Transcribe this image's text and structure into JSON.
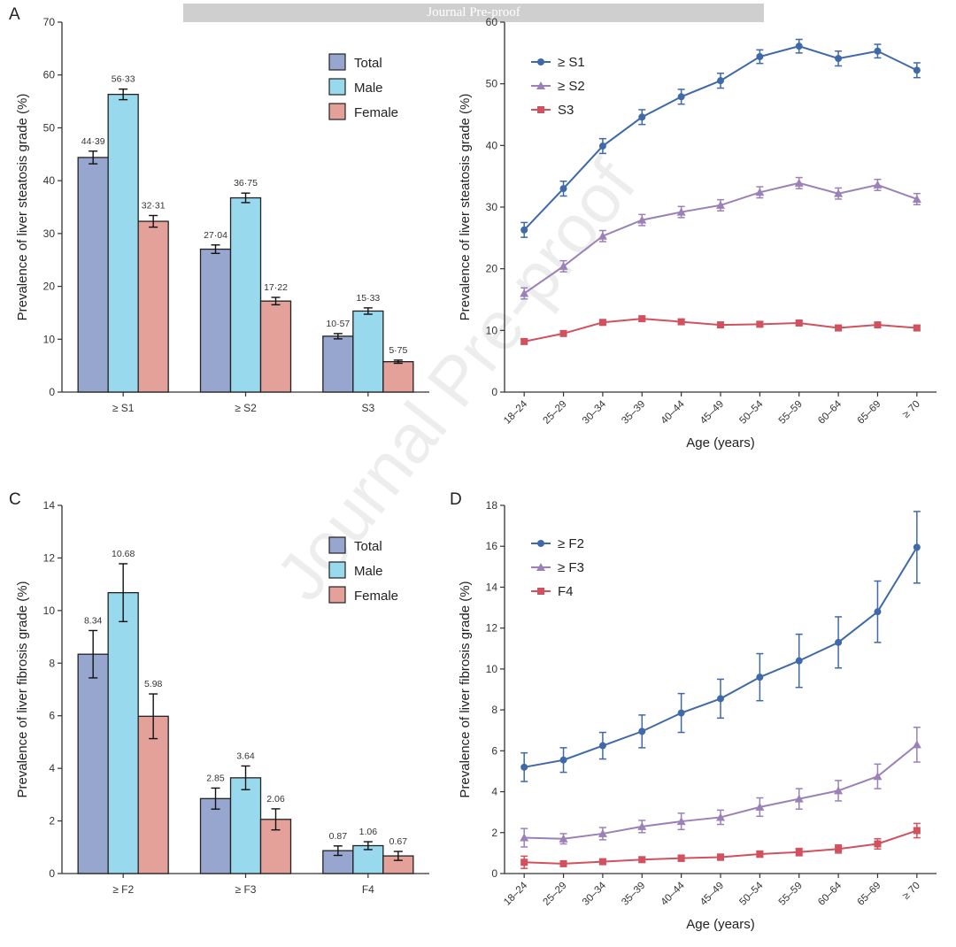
{
  "watermark": "Journal Pre-proof",
  "banner": "Journal Pre-proof",
  "colors": {
    "total": "#97a6cf",
    "male": "#98d9ee",
    "female": "#e4a19a",
    "s1": "#3f69a8",
    "s2": "#9b81b7",
    "s3": "#d1525e"
  },
  "chart_data": [
    {
      "panel": "A",
      "type": "bar",
      "ylabel": "Prevalence of liver steatosis grade (%)",
      "categories": [
        "≥ S1",
        "≥ S2",
        "S3"
      ],
      "ylim": [
        0,
        70
      ],
      "yticks": [
        0,
        10,
        20,
        30,
        40,
        50,
        60,
        70
      ],
      "legend_position": "top-right",
      "series": [
        {
          "name": "Total",
          "values": [
            44.39,
            27.04,
            10.57
          ],
          "labels": [
            "44·39",
            "27·04",
            "10·57"
          ],
          "err": [
            1.2,
            0.8,
            0.5
          ]
        },
        {
          "name": "Male",
          "values": [
            56.33,
            36.75,
            15.33
          ],
          "labels": [
            "56·33",
            "36·75",
            "15·33"
          ],
          "err": [
            1.0,
            0.9,
            0.6
          ]
        },
        {
          "name": "Female",
          "values": [
            32.31,
            17.22,
            5.75
          ],
          "labels": [
            "32·31",
            "17·22",
            "5·75"
          ],
          "err": [
            1.1,
            0.7,
            0.3
          ]
        }
      ]
    },
    {
      "panel": "B",
      "type": "line",
      "xlabel": "Age (years)",
      "ylabel": "Prevalence of liver steatosis grade (%)",
      "categories": [
        "18–24",
        "25–29",
        "30–34",
        "35–39",
        "40–44",
        "45–49",
        "50–54",
        "55–59",
        "60–64",
        "65–69",
        "≥ 70"
      ],
      "ylim": [
        0,
        60
      ],
      "yticks": [
        0,
        10,
        20,
        30,
        40,
        50,
        60
      ],
      "legend_position": "top-left",
      "series": [
        {
          "name": "≥ S1",
          "marker": "circle",
          "values": [
            26.3,
            33.0,
            39.9,
            44.6,
            47.9,
            50.5,
            54.4,
            56.1,
            54.1,
            55.3,
            52.2
          ],
          "err": [
            1.2,
            1.2,
            1.2,
            1.2,
            1.2,
            1.2,
            1.1,
            1.1,
            1.2,
            1.1,
            1.2
          ]
        },
        {
          "name": "≥ S2",
          "marker": "triangle",
          "values": [
            16.0,
            20.4,
            25.3,
            27.9,
            29.2,
            30.3,
            32.4,
            33.9,
            32.2,
            33.6,
            31.3
          ],
          "err": [
            0.9,
            0.9,
            0.9,
            0.9,
            0.9,
            0.9,
            0.9,
            0.9,
            0.9,
            0.9,
            0.9
          ]
        },
        {
          "name": "S3",
          "marker": "square",
          "values": [
            8.2,
            9.5,
            11.3,
            11.9,
            11.4,
            10.9,
            11.0,
            11.2,
            10.4,
            10.9,
            10.4
          ],
          "err": [
            0.4,
            0.4,
            0.4,
            0.4,
            0.4,
            0.4,
            0.4,
            0.4,
            0.4,
            0.4,
            0.4
          ]
        }
      ]
    },
    {
      "panel": "C",
      "type": "bar",
      "ylabel": "Prevalence of liver fibrosis grade (%)",
      "categories": [
        "≥ F2",
        "≥ F3",
        "F4"
      ],
      "ylim": [
        0,
        14
      ],
      "yticks": [
        0,
        2,
        4,
        6,
        8,
        10,
        12,
        14
      ],
      "legend_position": "top-right",
      "series": [
        {
          "name": "Total",
          "values": [
            8.34,
            2.85,
            0.87
          ],
          "labels": [
            "8.34",
            "2.85",
            "0.87"
          ],
          "err": [
            0.9,
            0.4,
            0.18
          ]
        },
        {
          "name": "Male",
          "values": [
            10.68,
            3.64,
            1.06
          ],
          "labels": [
            "10.68",
            "3.64",
            "1.06"
          ],
          "err": [
            1.1,
            0.45,
            0.15
          ]
        },
        {
          "name": "Female",
          "values": [
            5.98,
            2.06,
            0.67
          ],
          "labels": [
            "5.98",
            "2.06",
            "0.67"
          ],
          "err": [
            0.85,
            0.4,
            0.17
          ]
        }
      ]
    },
    {
      "panel": "D",
      "type": "line",
      "xlabel": "Age (years)",
      "ylabel": "Prevalence of liver fibrosis grade (%)",
      "categories": [
        "18–24",
        "25–29",
        "30–34",
        "35–39",
        "40–44",
        "45–49",
        "50–54",
        "55–59",
        "60–64",
        "65–69",
        "≥ 70"
      ],
      "ylim": [
        0,
        18
      ],
      "yticks": [
        0,
        2,
        4,
        6,
        8,
        10,
        12,
        14,
        16,
        18
      ],
      "legend_position": "top-left",
      "series": [
        {
          "name": "≥ F2",
          "marker": "circle",
          "values": [
            5.2,
            5.55,
            6.25,
            6.95,
            7.85,
            8.55,
            9.6,
            10.4,
            11.3,
            12.8,
            15.95
          ],
          "err": [
            0.7,
            0.6,
            0.65,
            0.8,
            0.95,
            0.95,
            1.15,
            1.3,
            1.25,
            1.5,
            1.75
          ]
        },
        {
          "name": "≥ F3",
          "marker": "triangle",
          "values": [
            1.75,
            1.7,
            1.95,
            2.3,
            2.55,
            2.75,
            3.25,
            3.65,
            4.05,
            4.75,
            6.3
          ],
          "err": [
            0.45,
            0.25,
            0.3,
            0.3,
            0.4,
            0.35,
            0.45,
            0.5,
            0.5,
            0.6,
            0.85
          ]
        },
        {
          "name": "F4",
          "marker": "square",
          "values": [
            0.55,
            0.48,
            0.58,
            0.68,
            0.75,
            0.8,
            0.95,
            1.05,
            1.2,
            1.45,
            2.1
          ],
          "err": [
            0.3,
            0.1,
            0.12,
            0.13,
            0.15,
            0.15,
            0.15,
            0.18,
            0.2,
            0.25,
            0.35
          ]
        }
      ]
    }
  ]
}
